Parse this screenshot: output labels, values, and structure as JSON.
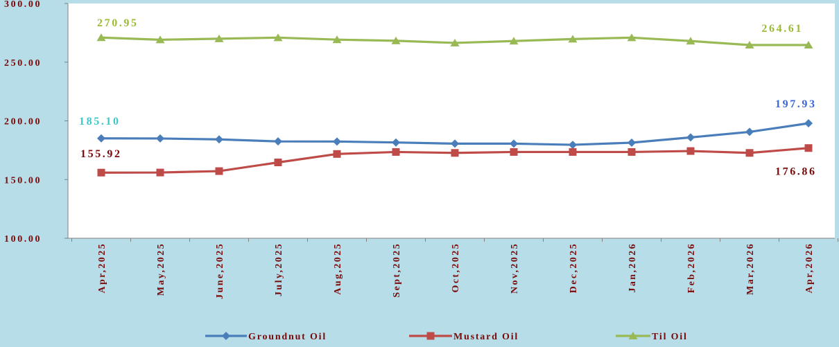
{
  "chart_data": {
    "type": "line",
    "categories": [
      "Apr,2025",
      "May,2025",
      "June,2025",
      "July,2025",
      "Aug,2025",
      "Sept,2025",
      "Oct,2025",
      "Nov,2025",
      "Dec,2025",
      "Jan,2026",
      "Feb,2026",
      "Mar,2026",
      "Apr,2026"
    ],
    "y_ticks": [
      "100.00",
      "150.00",
      "200.00",
      "250.00",
      "300.00"
    ],
    "ylim": [
      100,
      300
    ],
    "grid": false,
    "legend_position": "bottom",
    "series": [
      {
        "name": "Groundnut Oil",
        "color": "#4a7ebb",
        "marker": "diamond",
        "values": [
          185.1,
          185.0,
          184.2,
          182.5,
          182.4,
          181.6,
          180.6,
          180.6,
          179.6,
          181.4,
          185.9,
          190.6,
          197.93
        ]
      },
      {
        "name": "Mustard Oil",
        "color": "#be4b48",
        "marker": "square",
        "values": [
          155.92,
          156.0,
          157.2,
          164.6,
          171.8,
          173.5,
          172.7,
          173.5,
          173.5,
          173.5,
          174.3,
          172.7,
          176.86
        ]
      },
      {
        "name": "Til Oil",
        "color": "#98b954",
        "marker": "triangle",
        "values": [
          270.95,
          269.1,
          270.0,
          270.9,
          269.2,
          268.2,
          266.4,
          268.0,
          269.7,
          270.9,
          268.0,
          264.6,
          264.61
        ]
      }
    ],
    "annotations": [
      {
        "text": "270.95",
        "series": "Til Oil",
        "index": 0,
        "color": "#9bbb37"
      },
      {
        "text": "264.61",
        "series": "Til Oil",
        "index": 12,
        "color": "#9bbb37"
      },
      {
        "text": "185.10",
        "series": "Groundnut Oil",
        "index": 0,
        "color": "#3fc6c8"
      },
      {
        "text": "197.93",
        "series": "Groundnut Oil",
        "index": 12,
        "color": "#3a66d6"
      },
      {
        "text": "155.92",
        "series": "Mustard Oil",
        "index": 0,
        "color": "#7a0a0a"
      },
      {
        "text": "176.86",
        "series": "Mustard Oil",
        "index": 12,
        "color": "#7a0a0a"
      }
    ]
  }
}
